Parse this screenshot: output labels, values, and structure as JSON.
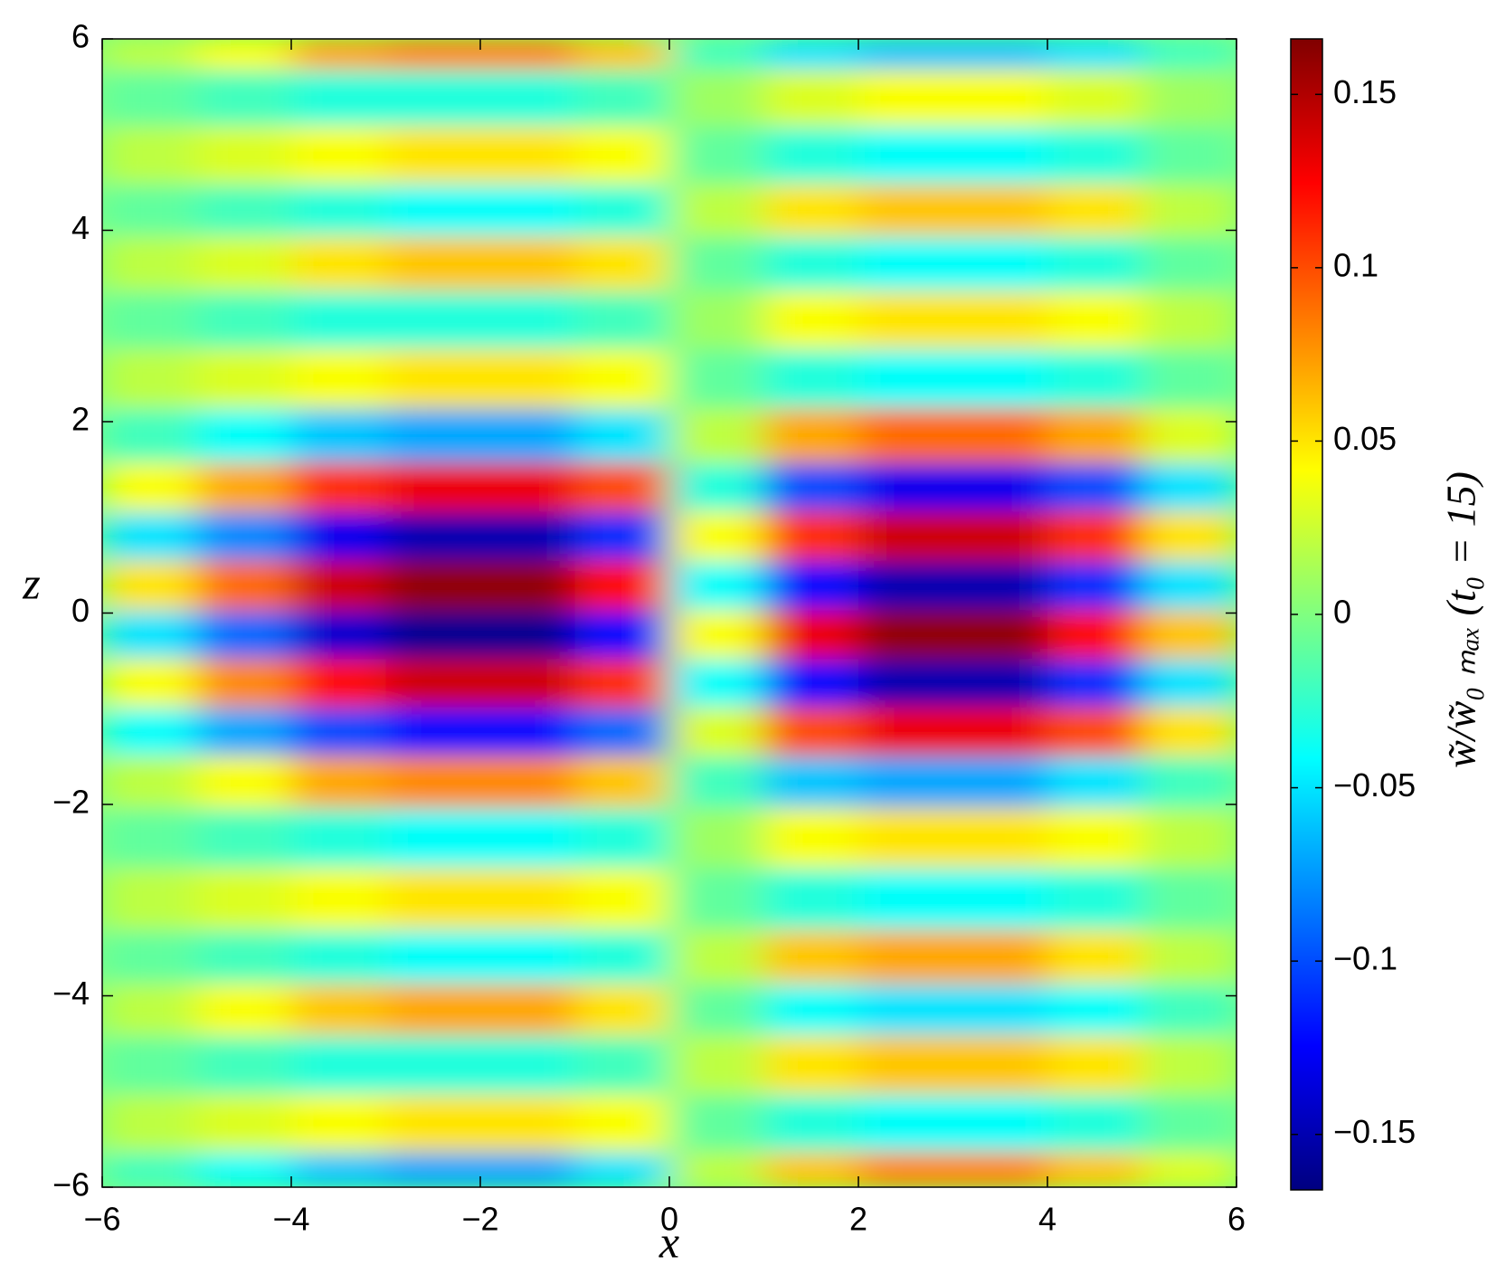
{
  "chart_data": {
    "type": "heatmap",
    "x_label": "x",
    "y_label": "z",
    "colorbar_label": "w̃/w̃₀ ₘₐₓ  (t₀ = 15)",
    "colormap": "jet",
    "clim": [
      -0.166,
      0.166
    ],
    "x": [
      -5.5,
      -4.5,
      -3.5,
      -2.5,
      -1.5,
      -0.5,
      0.5,
      1.5,
      2.5,
      3.5,
      4.5,
      5.5
    ],
    "y": [
      5.95,
      5.4,
      4.77,
      4.2,
      3.67,
      3.06,
      2.46,
      1.82,
      1.32,
      0.8,
      0.29,
      -0.23,
      -0.73,
      -1.24,
      -1.75,
      -2.33,
      -3.0,
      -3.62,
      -4.13,
      -4.7,
      -5.36,
      -5.9
    ],
    "values": [
      [
        0.02,
        0.04,
        0.07,
        0.08,
        0.08,
        0.06,
        -0.02,
        -0.05,
        -0.06,
        -0.06,
        -0.05,
        -0.02
      ],
      [
        -0.01,
        -0.02,
        -0.03,
        -0.03,
        -0.03,
        -0.02,
        0.01,
        0.03,
        0.04,
        0.04,
        0.03,
        0.01
      ],
      [
        0.02,
        0.03,
        0.04,
        0.05,
        0.05,
        0.04,
        -0.01,
        -0.03,
        -0.04,
        -0.04,
        -0.03,
        -0.01
      ],
      [
        -0.01,
        -0.02,
        -0.03,
        -0.04,
        -0.04,
        -0.03,
        0.02,
        0.05,
        0.06,
        0.06,
        0.05,
        0.02
      ],
      [
        0.02,
        0.03,
        0.05,
        0.06,
        0.06,
        0.05,
        -0.01,
        -0.03,
        -0.04,
        -0.04,
        -0.03,
        -0.01
      ],
      [
        -0.01,
        -0.02,
        -0.03,
        -0.03,
        -0.03,
        -0.02,
        0.01,
        0.04,
        0.05,
        0.05,
        0.04,
        0.02
      ],
      [
        0.02,
        0.03,
        0.04,
        0.05,
        0.05,
        0.04,
        -0.01,
        -0.03,
        -0.04,
        -0.04,
        -0.03,
        -0.01
      ],
      [
        -0.02,
        -0.04,
        -0.06,
        -0.07,
        -0.07,
        -0.05,
        0.02,
        0.07,
        0.09,
        0.09,
        0.07,
        0.03
      ],
      [
        0.04,
        0.07,
        0.11,
        0.13,
        0.13,
        0.1,
        -0.03,
        -0.1,
        -0.13,
        -0.13,
        -0.1,
        -0.05
      ],
      [
        -0.05,
        -0.08,
        -0.13,
        -0.15,
        -0.15,
        -0.11,
        0.04,
        0.11,
        0.14,
        0.14,
        0.11,
        0.05
      ],
      [
        0.05,
        0.09,
        0.14,
        0.16,
        0.16,
        0.12,
        -0.04,
        -0.12,
        -0.15,
        -0.15,
        -0.11,
        -0.05
      ],
      [
        -0.05,
        -0.09,
        -0.14,
        -0.16,
        -0.16,
        -0.12,
        0.04,
        0.13,
        0.16,
        0.16,
        0.12,
        0.06
      ],
      [
        0.04,
        0.08,
        0.12,
        0.14,
        0.14,
        0.11,
        -0.04,
        -0.12,
        -0.15,
        -0.15,
        -0.11,
        -0.05
      ],
      [
        -0.04,
        -0.07,
        -0.1,
        -0.12,
        -0.12,
        -0.09,
        0.03,
        0.1,
        0.13,
        0.13,
        0.1,
        0.05
      ],
      [
        0.02,
        0.04,
        0.07,
        0.08,
        0.08,
        0.06,
        -0.02,
        -0.06,
        -0.07,
        -0.07,
        -0.05,
        -0.02
      ],
      [
        -0.01,
        -0.02,
        -0.03,
        -0.04,
        -0.04,
        -0.03,
        0.01,
        0.04,
        0.05,
        0.05,
        0.04,
        0.02
      ],
      [
        0.02,
        0.03,
        0.04,
        0.05,
        0.05,
        0.04,
        -0.01,
        -0.03,
        -0.04,
        -0.04,
        -0.03,
        -0.01
      ],
      [
        -0.01,
        -0.02,
        -0.03,
        -0.04,
        -0.04,
        -0.03,
        0.02,
        0.06,
        0.07,
        0.07,
        0.05,
        0.02
      ],
      [
        0.02,
        0.04,
        0.06,
        0.07,
        0.07,
        0.05,
        -0.01,
        -0.04,
        -0.05,
        -0.05,
        -0.04,
        -0.02
      ],
      [
        -0.01,
        -0.02,
        -0.03,
        -0.03,
        -0.03,
        -0.02,
        0.02,
        0.05,
        0.06,
        0.06,
        0.05,
        0.02
      ],
      [
        0.02,
        0.03,
        0.04,
        0.05,
        0.05,
        0.04,
        -0.01,
        -0.03,
        -0.04,
        -0.04,
        -0.03,
        -0.01
      ],
      [
        -0.02,
        -0.04,
        -0.06,
        -0.07,
        -0.07,
        -0.05,
        0.02,
        0.06,
        0.08,
        0.08,
        0.06,
        0.03
      ]
    ],
    "xlim": [
      -6,
      6
    ],
    "ylim": [
      -6,
      6
    ],
    "xticks": [
      {
        "value": -6,
        "label": "−6"
      },
      {
        "value": -4,
        "label": "−4"
      },
      {
        "value": -2,
        "label": "−2"
      },
      0,
      2,
      4,
      6
    ],
    "yticks": [
      {
        "value": -6,
        "label": "−6"
      },
      {
        "value": -4,
        "label": "−4"
      },
      {
        "value": -2,
        "label": "−2"
      },
      0,
      2,
      4,
      6
    ],
    "cticks": [
      {
        "value": -0.15,
        "label": "−0.15"
      },
      {
        "value": -0.1,
        "label": "−0.1"
      },
      {
        "value": -0.05,
        "label": "−0.05"
      },
      0,
      0.05,
      0.1,
      0.15
    ]
  }
}
